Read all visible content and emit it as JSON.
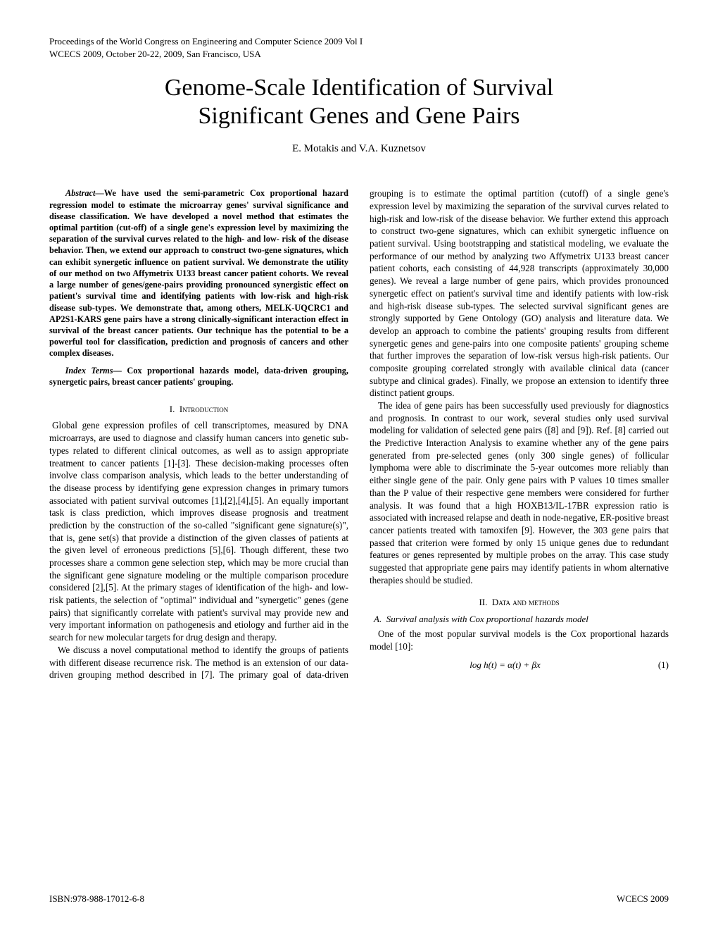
{
  "header": {
    "line1": "Proceedings of the World Congress on Engineering and Computer Science 2009 Vol I",
    "line2": "WCECS 2009, October 20-22, 2009, San Francisco, USA"
  },
  "title": {
    "line1": "Genome-Scale Identification of Survival",
    "line2": "Significant Genes and Gene Pairs"
  },
  "authors": "E. Motakis and V.A. Kuznetsov",
  "abstract": {
    "label": "Abstract",
    "dash": "—",
    "text": "We have used the semi-parametric Cox proportional hazard regression model to estimate the microarray genes' survival significance and disease classification. We have developed a novel method that estimates the optimal partition (cut-off) of a single gene's expression level by maximizing the separation of the survival curves related to the high- and low- risk of the disease behavior. Then, we extend our approach to construct two-gene signatures, which can exhibit synergetic influence on patient survival. We demonstrate the utility of our method on two Affymetrix U133 breast cancer patient cohorts. We reveal a large number of genes/gene-pairs providing pronounced synergistic effect on patient's survival time and identifying patients with low-risk and high-risk disease sub-types. We demonstrate that, among others, MELK-UQCRC1 and AP2S1-KARS gene pairs have a strong clinically-significant interaction effect in survival of the breast cancer patients. Our technique has the potential to be a powerful tool for classification, prediction and prognosis of cancers and other complex diseases."
  },
  "index_terms": {
    "label": "Index Terms",
    "dash": "— ",
    "text": "Cox proportional hazards model, data-driven grouping, synergetic pairs, breast cancer patients' grouping."
  },
  "sections": {
    "intro": {
      "number": "I.",
      "title": "Introduction",
      "p1": "Global gene expression profiles of cell transcriptomes, measured by DNA microarrays, are used to diagnose and classify human cancers into genetic sub-types related to different clinical outcomes, as well as to assign appropriate treatment to cancer patients [1]-[3]. These decision-making processes often involve class comparison analysis, which leads to the better understanding of the disease process by identifying gene expression changes in primary tumors associated with patient survival outcomes [1],[2],[4],[5]. An equally important task is class prediction, which improves disease prognosis and treatment prediction by the construction of the so-called \"significant gene signature(s)\", that is, gene set(s) that provide a distinction of the given classes of patients at the given level of erroneous predictions [5],[6]. Though different, these two processes share a common gene selection step, which may be more crucial than the significant gene signature modeling or the multiple comparison procedure considered [2],[5]. At the primary stages of identification of the high- and low- risk patients, the selection of \"optimal\" individual and \"synergetic\" genes (gene pairs) that significantly correlate with patient's survival may provide new and very important information on pathogenesis and etiology and further aid in the search for new molecular targets for drug design and therapy.",
      "p2": "We discuss a novel computational method to identify the groups of patients with different disease recurrence risk. The method is an extension of our data-driven grouping method described in [7]. The primary goal of data-driven grouping is to estimate the optimal partition (cutoff) of a single gene's expression level by maximizing the separation of the survival curves related to high-risk and low-risk of the disease behavior. We further extend this approach to construct two-gene signatures, which can exhibit synergetic influence on patient survival. Using bootstrapping and statistical modeling, we evaluate the performance of our method by analyzing two Affymetrix U133 breast cancer patient cohorts, each consisting of 44,928 transcripts (approximately 30,000 genes). We reveal a large number of gene pairs, which provides pronounced synergetic effect on patient's survival time and identify patients with low-risk and high-risk disease sub-types. The selected survival significant genes are strongly supported by Gene Ontology (GO) analysis and literature data. We develop an approach to combine the patients' grouping results from different synergetic genes and gene-pairs into one composite patients' grouping scheme that further improves the separation of low-risk versus high-risk patients. Our composite grouping correlated strongly with available clinical data (cancer subtype and clinical grades). Finally, we propose an extension to identify three distinct patient groups.",
      "p3": "The idea of gene pairs has been successfully used previously for diagnostics and prognosis. In contrast to our work, several studies only used survival modeling for validation of selected gene pairs ([8] and [9]). Ref. [8] carried out the Predictive Interaction Analysis to examine whether any of the gene pairs generated from pre-selected genes (only 300 single genes) of follicular lymphoma were able to discriminate the 5-year outcomes more reliably than either single gene of the pair. Only gene pairs with P values 10 times smaller than the P value of their respective gene members were considered for further analysis. It was found that a high HOXB13/IL-17BR expression ratio is associated with increased relapse and death in node-negative, ER-positive breast cancer patients treated with tamoxifen [9]. However, the 303 gene pairs that passed that criterion were formed by only 15 unique genes due to redundant features or genes represented by multiple probes on the array. This case study suggested that appropriate gene pairs may identify patients in whom alternative therapies should be studied."
    },
    "methods": {
      "number": "II.",
      "title": "Data and methods",
      "subA": {
        "label": "A.",
        "title": "Survival analysis with Cox proportional hazards model",
        "p1": "One of the most popular survival models is the Cox proportional hazards model [10]:"
      }
    }
  },
  "equation": {
    "text": "log h(t) = α(t) + βx",
    "num": "(1)"
  },
  "footer": {
    "left": "ISBN:978-988-17012-6-8",
    "right": "WCECS 2009"
  }
}
